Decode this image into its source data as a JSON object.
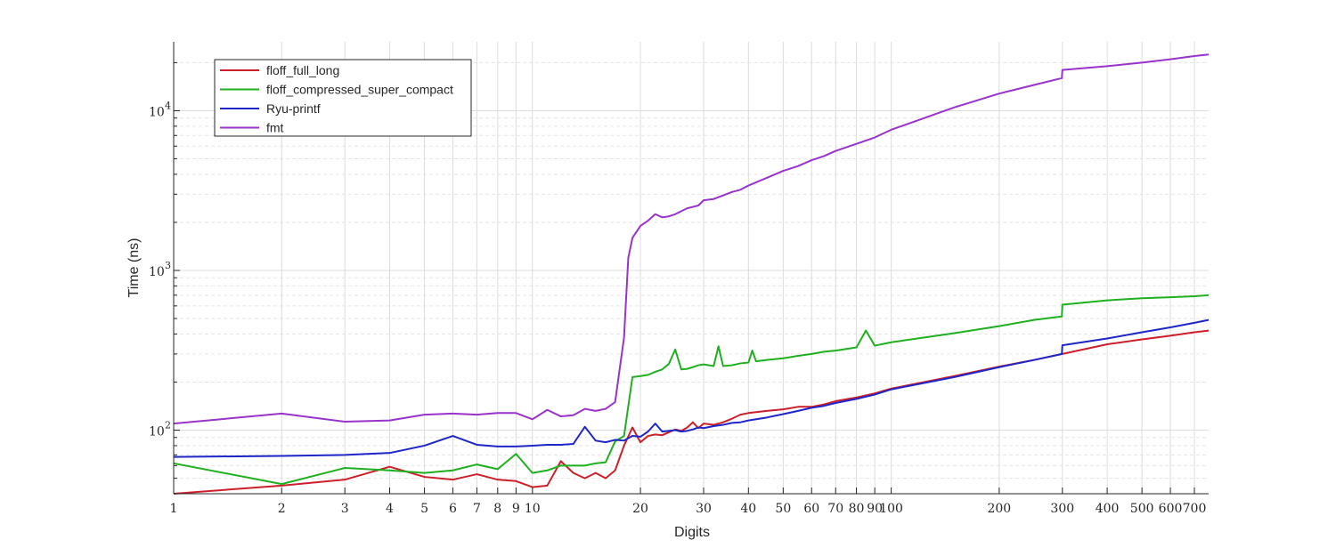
{
  "chart_data": {
    "type": "line",
    "title": "",
    "xlabel": "Digits",
    "ylabel": "Time (ns)",
    "x_scale": "log",
    "y_scale": "log",
    "xlim": [
      1,
      767
    ],
    "ylim": [
      40,
      27000
    ],
    "grid": true,
    "minor_grid": true,
    "legend_position": "top-left",
    "x_ticks": [
      1,
      2,
      3,
      4,
      5,
      6,
      7,
      8,
      9,
      10,
      20,
      30,
      40,
      50,
      60,
      70,
      80,
      90,
      100,
      200,
      300,
      400,
      500,
      600,
      700
    ],
    "x_tick_labels": [
      "1",
      "2",
      "3",
      "4",
      "5",
      "6",
      "7",
      "8",
      "9",
      "10",
      "20",
      "30",
      "40",
      "50",
      "60",
      "70",
      "80",
      "90",
      "100",
      "200",
      "300",
      "400",
      "500",
      "600",
      "700"
    ],
    "y_ticks": [
      {
        "value": 100,
        "base": "10",
        "exp": "2"
      },
      {
        "value": 1000,
        "base": "10",
        "exp": "3"
      },
      {
        "value": 10000,
        "base": "10",
        "exp": "4"
      }
    ],
    "series": [
      {
        "name": "floff_full_long",
        "color": "#cc1f2b",
        "x": [
          1,
          2,
          3,
          4,
          5,
          6,
          7,
          8,
          9,
          10,
          11,
          12,
          13,
          14,
          15,
          16,
          17,
          18,
          19,
          20,
          21,
          22,
          23,
          24,
          25,
          26,
          27,
          28,
          29,
          30,
          32,
          34,
          36,
          38,
          40,
          45,
          50,
          55,
          60,
          65,
          70,
          80,
          90,
          100,
          150,
          200,
          250,
          300,
          400,
          500,
          600,
          700,
          767
        ],
        "y": [
          40,
          45,
          49,
          59,
          51,
          49,
          53,
          49,
          48,
          44,
          45,
          64,
          54,
          50,
          54,
          50,
          56,
          80,
          104,
          84,
          92,
          94,
          93,
          97,
          101,
          99,
          104,
          112,
          103,
          110,
          108,
          112,
          118,
          125,
          128,
          132,
          135,
          140,
          140,
          145,
          152,
          160,
          170,
          182,
          218,
          250,
          275,
          300,
          345,
          370,
          390,
          410,
          420
        ]
      },
      {
        "name": "floff_compressed_super_compact",
        "color": "#1fb01f",
        "x": [
          1,
          2,
          3,
          4,
          5,
          6,
          7,
          8,
          9,
          10,
          11,
          12,
          13,
          14,
          15,
          16,
          17,
          18,
          19,
          20,
          21,
          22,
          23,
          24,
          25,
          26,
          27,
          28,
          29,
          30,
          32,
          33,
          34,
          36,
          38,
          40,
          41,
          42,
          45,
          50,
          55,
          60,
          65,
          70,
          80,
          85,
          90,
          100,
          150,
          200,
          250,
          299,
          300,
          400,
          500,
          600,
          700,
          767
        ],
        "y": [
          62,
          46,
          58,
          56,
          54,
          56,
          61,
          57,
          71,
          54,
          56,
          60,
          60,
          60,
          62,
          63,
          85,
          92,
          215,
          218,
          222,
          232,
          240,
          260,
          320,
          240,
          242,
          248,
          255,
          258,
          252,
          335,
          252,
          255,
          262,
          265,
          315,
          270,
          275,
          282,
          292,
          300,
          310,
          315,
          330,
          420,
          338,
          355,
          405,
          448,
          490,
          515,
          610,
          650,
          670,
          680,
          690,
          700
        ]
      },
      {
        "name": "Ryu-printf",
        "color": "#1f26c8",
        "x": [
          1,
          2,
          3,
          4,
          5,
          6,
          7,
          8,
          9,
          10,
          11,
          12,
          13,
          14,
          15,
          16,
          17,
          18,
          19,
          20,
          21,
          22,
          23,
          24,
          25,
          26,
          27,
          28,
          29,
          30,
          32,
          34,
          36,
          38,
          40,
          45,
          50,
          55,
          60,
          65,
          70,
          80,
          90,
          100,
          150,
          200,
          250,
          299,
          300,
          400,
          500,
          600,
          700,
          767
        ],
        "y": [
          68,
          69,
          70,
          72,
          80,
          92,
          81,
          79,
          79,
          80,
          81,
          81,
          82,
          105,
          86,
          84,
          87,
          86,
          92,
          91,
          98,
          110,
          98,
          99,
          100,
          98,
          99,
          101,
          104,
          103,
          106,
          108,
          111,
          112,
          115,
          120,
          126,
          132,
          138,
          142,
          148,
          157,
          167,
          180,
          215,
          248,
          275,
          300,
          340,
          375,
          410,
          440,
          470,
          490
        ]
      },
      {
        "name": "fmt",
        "color": "#9933cc",
        "x": [
          1,
          2,
          3,
          4,
          5,
          6,
          7,
          8,
          9,
          10,
          11,
          12,
          13,
          14,
          15,
          16,
          17,
          18,
          18.5,
          19,
          20,
          21,
          22,
          23,
          24,
          25,
          26,
          27,
          28,
          29,
          30,
          32,
          34,
          36,
          38,
          40,
          45,
          50,
          55,
          60,
          65,
          70,
          80,
          90,
          100,
          150,
          200,
          250,
          299,
          300,
          400,
          500,
          600,
          700,
          767
        ],
        "y": [
          110,
          127,
          113,
          115,
          125,
          127,
          125,
          128,
          128,
          117,
          134,
          122,
          124,
          136,
          132,
          136,
          150,
          380,
          1200,
          1600,
          1900,
          2050,
          2250,
          2150,
          2180,
          2250,
          2350,
          2450,
          2500,
          2550,
          2750,
          2800,
          2950,
          3100,
          3200,
          3400,
          3800,
          4200,
          4500,
          4900,
          5200,
          5600,
          6200,
          6800,
          7600,
          10500,
          12800,
          14500,
          16000,
          18000,
          19000,
          20000,
          21000,
          22000,
          22500
        ]
      }
    ]
  }
}
